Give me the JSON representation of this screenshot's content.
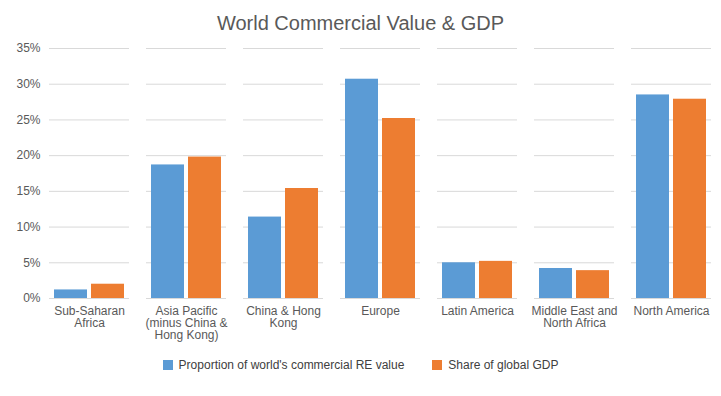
{
  "chart_data": {
    "type": "bar",
    "title": "World Commercial Value & GDP",
    "categories": [
      "Sub-Saharan Africa",
      "Asia Pacific (minus China & Hong Kong)",
      "China & Hong Kong",
      "Europe",
      "Latin America",
      "Middle East and North Africa",
      "North America"
    ],
    "series": [
      {
        "name": "Proportion of world's commercial RE value",
        "color": "#5b9bd5",
        "values": [
          1.2,
          18.7,
          11.4,
          30.7,
          5.0,
          4.2,
          28.5
        ]
      },
      {
        "name": "Share of global GDP",
        "color": "#ed7d31",
        "values": [
          2.0,
          19.8,
          15.4,
          25.2,
          5.2,
          3.9,
          27.9
        ]
      }
    ],
    "ylim": [
      0,
      35
    ],
    "yticks": [
      {
        "value": 0,
        "label": "0%"
      },
      {
        "value": 5,
        "label": "5%"
      },
      {
        "value": 10,
        "label": "10%"
      },
      {
        "value": 15,
        "label": "15%"
      },
      {
        "value": 20,
        "label": "20%"
      },
      {
        "value": 25,
        "label": "25%"
      },
      {
        "value": 30,
        "label": "30%"
      },
      {
        "value": 35,
        "label": "35%"
      }
    ],
    "grid": true,
    "legend": "bottom"
  }
}
